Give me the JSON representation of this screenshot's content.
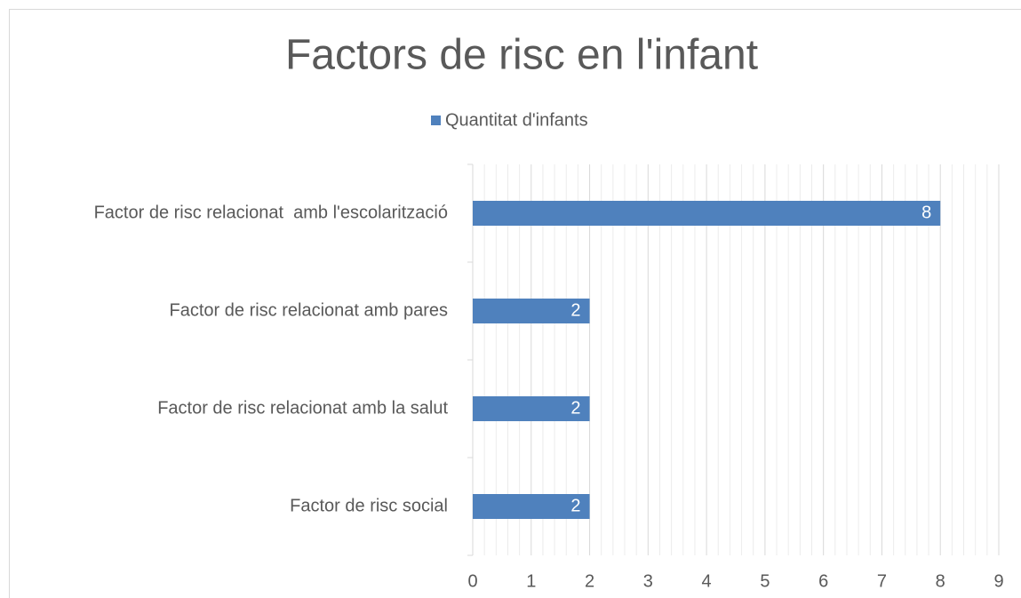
{
  "chart_data": {
    "type": "hbar",
    "title": "Factors de risc en l'infant",
    "categories": [
      "Factor de risc relacionat  amb l'escolarització",
      "Factor de risc relacionat amb pares",
      "Factor de risc relacionat amb la salut",
      "Factor de risc social"
    ],
    "series": [
      {
        "name": "Quantitat d'infants",
        "color": "#4f81bd",
        "values": [
          8,
          2,
          2,
          2
        ]
      }
    ],
    "xlim": [
      0,
      9
    ],
    "xticks": [
      0,
      1,
      2,
      3,
      4,
      5,
      6,
      7,
      8,
      9
    ],
    "grid": true,
    "minor_grid": true,
    "legend": "top"
  }
}
